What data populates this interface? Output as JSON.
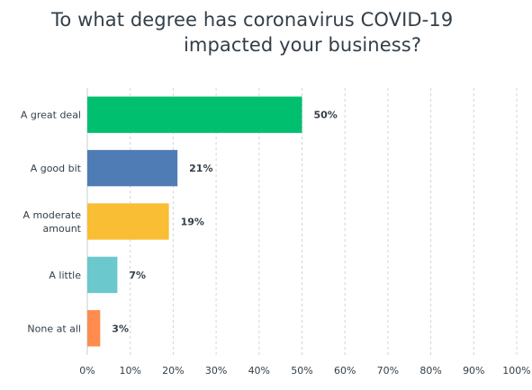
{
  "chart_data": {
    "type": "bar",
    "orientation": "horizontal",
    "title_lines": [
      "To what degree has coronavirus COVID-19",
      "impacted your business?"
    ],
    "categories": [
      {
        "label_lines": [
          "A great deal"
        ],
        "value": 50,
        "value_label": "50%",
        "color": "#00bf6f"
      },
      {
        "label_lines": [
          "A good bit"
        ],
        "value": 21,
        "value_label": "21%",
        "color": "#507cb6"
      },
      {
        "label_lines": [
          "A moderate",
          "amount"
        ],
        "value": 19,
        "value_label": "19%",
        "color": "#f9be34"
      },
      {
        "label_lines": [
          "A little"
        ],
        "value": 7,
        "value_label": "7%",
        "color": "#6bc8cd"
      },
      {
        "label_lines": [
          "None at all"
        ],
        "value": 3,
        "value_label": "3%",
        "color": "#ff8b4f"
      }
    ],
    "xlim": [
      0,
      100
    ],
    "xticks": [
      "0%",
      "10%",
      "20%",
      "30%",
      "40%",
      "50%",
      "60%",
      "70%",
      "80%",
      "90%",
      "100%"
    ],
    "grid": "vertical-dashed",
    "colors": {
      "text": "#333e48",
      "grid": "#d0d4d8"
    }
  }
}
